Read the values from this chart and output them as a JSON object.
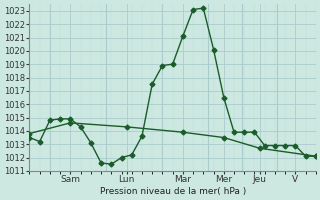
{
  "background_color": "#cce8e0",
  "plot_bg_color": "#cce8e0",
  "grid_major_color": "#aacccc",
  "grid_minor_color": "#bbdddd",
  "line_color": "#1a5c2a",
  "ylabel": "Pression niveau de la mer( hPa )",
  "ylim": [
    1011,
    1023.5
  ],
  "yticks": [
    1011,
    1012,
    1013,
    1014,
    1015,
    1016,
    1017,
    1018,
    1019,
    1020,
    1021,
    1022,
    1023
  ],
  "day_labels": [
    "Sam",
    "Lun",
    "Mar",
    "Mer",
    "Jeu",
    "V"
  ],
  "day_tick_positions": [
    16,
    38,
    60,
    76,
    90,
    104
  ],
  "xlim": [
    0,
    112
  ],
  "line1_x": [
    0,
    4,
    8,
    12,
    16,
    20,
    24,
    28,
    32,
    36,
    40,
    44,
    48,
    52,
    56,
    60,
    64,
    68,
    72,
    76,
    80,
    84,
    88,
    92,
    96,
    100,
    104,
    108,
    112
  ],
  "line1_y": [
    1013.5,
    1013.2,
    1014.8,
    1014.9,
    1014.9,
    1014.3,
    1013.1,
    1011.6,
    1011.5,
    1012.0,
    1012.2,
    1013.6,
    1017.5,
    1018.9,
    1019.0,
    1021.1,
    1023.1,
    1023.2,
    1020.1,
    1016.5,
    1013.9,
    1013.9,
    1013.9,
    1012.9,
    1012.9,
    1012.9,
    1012.9,
    1012.1,
    1012.1
  ],
  "line2_x": [
    0,
    16,
    38,
    60,
    76,
    90,
    112
  ],
  "line2_y": [
    1013.8,
    1014.6,
    1014.3,
    1013.9,
    1013.5,
    1012.7,
    1012.1
  ],
  "marker_size": 2.5,
  "linewidth": 1.0
}
